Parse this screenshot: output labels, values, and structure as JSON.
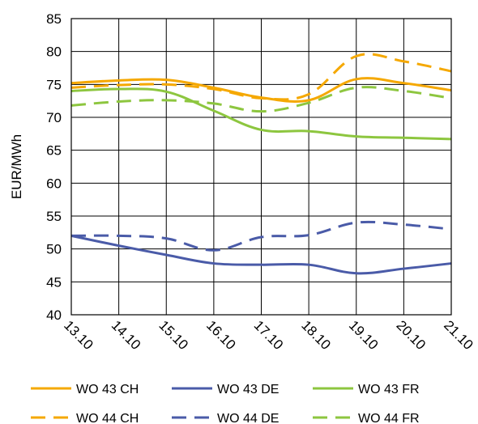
{
  "chart_data": {
    "type": "line",
    "ylabel": "EUR/MWh",
    "ylim": [
      40,
      85
    ],
    "y_ticks": [
      "40",
      "45",
      "50",
      "55",
      "60",
      "65",
      "70",
      "75",
      "80",
      "85"
    ],
    "categories": [
      "13.10",
      "14.10",
      "15.10",
      "16.10",
      "17.10",
      "18.10",
      "19.10",
      "20.10",
      "21.10"
    ],
    "grid": true,
    "legend_position": "bottom",
    "series": [
      {
        "name": "WO 43 CH",
        "color": "#F5A800",
        "style": "solid",
        "values": [
          75.2,
          75.6,
          75.7,
          74.5,
          73.0,
          72.6,
          75.8,
          75.2,
          74.1
        ]
      },
      {
        "name": "WO 43 DE",
        "color": "#4A5BA8",
        "style": "solid",
        "values": [
          52.0,
          50.5,
          49.1,
          47.8,
          47.6,
          47.6,
          46.3,
          47.0,
          47.8
        ]
      },
      {
        "name": "WO 43 FR",
        "color": "#8DC63F",
        "style": "solid",
        "values": [
          74.0,
          74.3,
          73.9,
          71.0,
          68.1,
          67.9,
          67.1,
          66.9,
          66.7
        ]
      },
      {
        "name": "WO 44 CH",
        "color": "#F5A800",
        "style": "dashed",
        "values": [
          74.5,
          74.9,
          75.0,
          74.3,
          72.9,
          73.5,
          79.3,
          78.5,
          77.0
        ]
      },
      {
        "name": "WO 44 DE",
        "color": "#4A5BA8",
        "style": "dashed",
        "values": [
          52.0,
          52.0,
          51.6,
          49.8,
          51.8,
          52.1,
          54.0,
          53.7,
          53.0
        ]
      },
      {
        "name": "WO 44 FR",
        "color": "#8DC63F",
        "style": "dashed",
        "values": [
          71.8,
          72.4,
          72.6,
          72.1,
          70.9,
          72.2,
          74.5,
          74.0,
          72.9
        ]
      }
    ]
  }
}
